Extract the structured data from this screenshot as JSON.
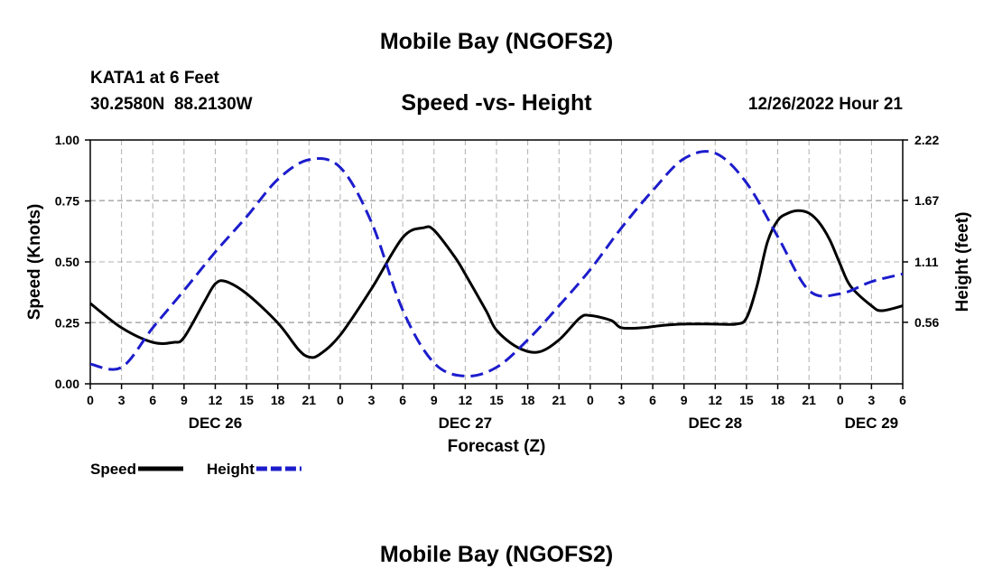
{
  "page": {
    "title": "Mobile Bay (NGOFS2)",
    "station_line": "KATA1 at 6 Feet",
    "coords": "30.2580N  88.2130W",
    "timestamp": "12/26/2022 Hour 21",
    "footer_title": "Mobile Bay (NGOFS2)"
  },
  "chart_data": {
    "type": "line",
    "title": "Speed -vs- Height",
    "xlabel": "Forecast (Z)",
    "ylabel_left": "Speed (Knots)",
    "ylabel_right": "Height (feet)",
    "xlim": [
      0,
      78
    ],
    "ylim_left": [
      0,
      1
    ],
    "ylim_right": [
      0,
      2.22
    ],
    "x_ticks": [
      0,
      3,
      6,
      9,
      12,
      15,
      18,
      21,
      24,
      27,
      30,
      33,
      36,
      39,
      42,
      45,
      48,
      51,
      54,
      57,
      60,
      63,
      66,
      69,
      72,
      75,
      78
    ],
    "x_tick_labels": [
      "0",
      "3",
      "6",
      "9",
      "12",
      "15",
      "18",
      "21",
      "0",
      "3",
      "6",
      "9",
      "12",
      "15",
      "18",
      "21",
      "0",
      "3",
      "6",
      "9",
      "12",
      "15",
      "18",
      "21",
      "0",
      "3",
      "6"
    ],
    "y_ticks_left": [
      0,
      0.25,
      0.5,
      0.75,
      1.0
    ],
    "y_tick_labels_left": [
      "0.00",
      "0.25",
      "0.50",
      "0.75",
      "1.00"
    ],
    "y_ticks_right": [
      0.56,
      1.11,
      1.67,
      2.22
    ],
    "y_tick_labels_right": [
      "0.56",
      "1.11",
      "1.67",
      "2.22"
    ],
    "day_labels": [
      {
        "x": 12,
        "label": "DEC 26"
      },
      {
        "x": 36,
        "label": "DEC 27"
      },
      {
        "x": 60,
        "label": "DEC 28"
      },
      {
        "x": 75,
        "label": "DEC 29"
      }
    ],
    "grid": true,
    "legend_position": "bottom-left",
    "series": [
      {
        "name": "Speed",
        "axis": "left",
        "color": "#000000",
        "style": "solid",
        "x": [
          0,
          3,
          6,
          8,
          9,
          11,
          12,
          13,
          15,
          18,
          20,
          21,
          22,
          24,
          27,
          30,
          32,
          33,
          35,
          36,
          38,
          39,
          41,
          43,
          45,
          47,
          48,
          50,
          51,
          53,
          55,
          57,
          60,
          62,
          63,
          64,
          65,
          66,
          67,
          68,
          69,
          70,
          71,
          72,
          73,
          75,
          76,
          78
        ],
        "y": [
          0.33,
          0.23,
          0.17,
          0.17,
          0.19,
          0.34,
          0.41,
          0.42,
          0.37,
          0.25,
          0.14,
          0.11,
          0.12,
          0.2,
          0.39,
          0.6,
          0.64,
          0.63,
          0.52,
          0.45,
          0.3,
          0.22,
          0.15,
          0.13,
          0.18,
          0.27,
          0.28,
          0.26,
          0.23,
          0.23,
          0.24,
          0.245,
          0.245,
          0.245,
          0.27,
          0.4,
          0.58,
          0.67,
          0.7,
          0.71,
          0.7,
          0.66,
          0.59,
          0.49,
          0.4,
          0.32,
          0.3,
          0.32
        ]
      },
      {
        "name": "Height",
        "axis": "right",
        "color": "#1c1ccc",
        "style": "dashed",
        "x": [
          0,
          3,
          6,
          9,
          12,
          15,
          18,
          21,
          24,
          27,
          30,
          33,
          36,
          39,
          42,
          45,
          48,
          51,
          54,
          57,
          60,
          63,
          66,
          69,
          72,
          75,
          78
        ],
        "y": [
          0.18,
          0.15,
          0.51,
          0.85,
          1.2,
          1.52,
          1.86,
          2.04,
          1.97,
          1.47,
          0.67,
          0.19,
          0.07,
          0.15,
          0.4,
          0.71,
          1.04,
          1.42,
          1.76,
          2.05,
          2.1,
          1.83,
          1.34,
          0.85,
          0.82,
          0.93,
          1.0
        ]
      }
    ]
  }
}
